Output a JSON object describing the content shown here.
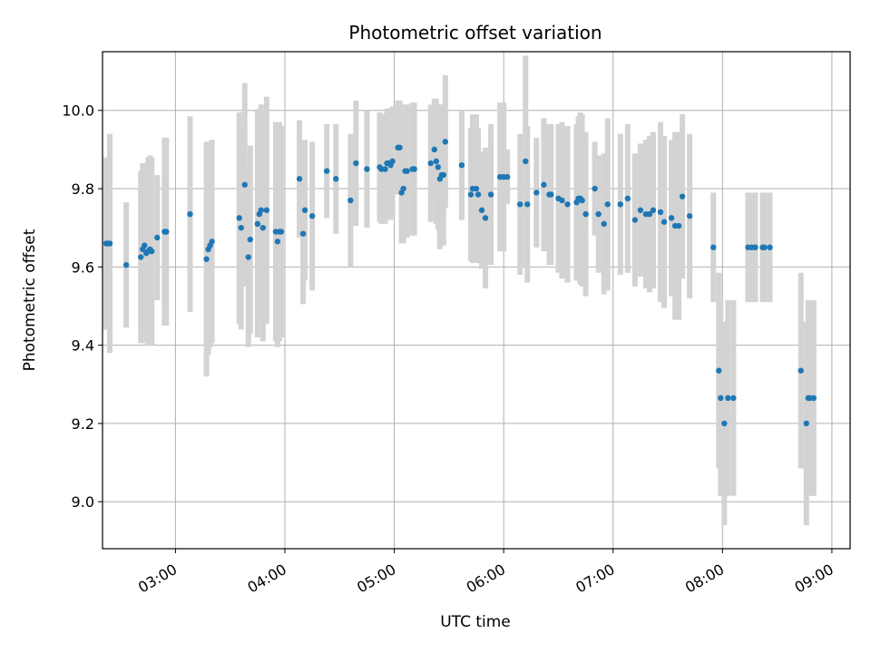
{
  "chart_data": {
    "type": "scatter",
    "title": "Photometric offset variation",
    "xlabel": "UTC time",
    "ylabel": "Photometric offset",
    "xlim": [
      "02:20",
      "09:10"
    ],
    "ylim": [
      8.88,
      10.15
    ],
    "x_ticks": [
      "03:00",
      "04:00",
      "05:00",
      "06:00",
      "07:00",
      "08:00",
      "09:00"
    ],
    "y_ticks": [
      "9.0",
      "9.2",
      "9.4",
      "9.6",
      "9.8",
      "10.0"
    ],
    "grid": true,
    "colors": {
      "points": "#1f77b4",
      "errorbars": "#d3d3d3",
      "grid": "#b0b0b0"
    },
    "series": [
      {
        "x": [
          "02:22",
          "02:23",
          "02:24",
          "02:33",
          "02:41",
          "02:42",
          "02:43",
          "02:44",
          "02:45",
          "02:46",
          "02:47",
          "02:50",
          "02:54",
          "02:55",
          "03:08",
          "03:17",
          "03:18",
          "03:19",
          "03:20",
          "03:35",
          "03:36",
          "03:38",
          "03:40",
          "03:41",
          "03:45",
          "03:46",
          "03:47",
          "03:48",
          "03:50",
          "03:55",
          "03:56",
          "03:57",
          "03:58",
          "04:08",
          "04:10",
          "04:11",
          "04:15",
          "04:23",
          "04:28",
          "04:36",
          "04:39",
          "04:45",
          "04:52",
          "04:53",
          "04:55",
          "04:56",
          "04:57",
          "04:58",
          "04:59",
          "05:02",
          "05:03",
          "05:04",
          "05:05",
          "05:06",
          "05:07",
          "05:10",
          "05:11",
          "05:20",
          "05:22",
          "05:23",
          "05:24",
          "05:25",
          "05:26",
          "05:27",
          "05:28",
          "05:37",
          "05:42",
          "05:43",
          "05:45",
          "05:46",
          "05:48",
          "05:50",
          "05:53",
          "05:58",
          "06:00",
          "06:02",
          "06:09",
          "06:12",
          "06:13",
          "06:18",
          "06:22",
          "06:25",
          "06:26",
          "06:30",
          "06:32",
          "06:35",
          "06:40",
          "06:41",
          "06:42",
          "06:43",
          "06:45",
          "06:50",
          "06:52",
          "06:55",
          "06:57",
          "07:04",
          "07:08",
          "07:12",
          "07:15",
          "07:18",
          "07:20",
          "07:22",
          "07:26",
          "07:28",
          "07:32",
          "07:34",
          "07:36",
          "07:38",
          "07:42",
          "07:55",
          "07:58",
          "07:59",
          "08:01",
          "08:03",
          "08:06",
          "08:14",
          "08:16",
          "08:18",
          "08:22",
          "08:23",
          "08:26",
          "08:43",
          "08:46",
          "08:47",
          "08:48",
          "08:50"
        ],
        "y": [
          9.66,
          9.66,
          9.66,
          9.605,
          9.625,
          9.645,
          9.655,
          9.635,
          9.64,
          9.645,
          9.64,
          9.675,
          9.69,
          9.69,
          9.735,
          9.62,
          9.645,
          9.655,
          9.665,
          9.725,
          9.7,
          9.81,
          9.625,
          9.67,
          9.71,
          9.735,
          9.745,
          9.7,
          9.745,
          9.69,
          9.665,
          9.69,
          9.69,
          9.825,
          9.685,
          9.745,
          9.73,
          9.845,
          9.825,
          9.77,
          9.865,
          9.85,
          9.855,
          9.85,
          9.85,
          9.865,
          9.865,
          9.86,
          9.87,
          9.905,
          9.905,
          9.79,
          9.8,
          9.845,
          9.845,
          9.85,
          9.85,
          9.865,
          9.9,
          9.87,
          9.855,
          9.825,
          9.835,
          9.835,
          9.92,
          9.86,
          9.785,
          9.8,
          9.8,
          9.785,
          9.745,
          9.725,
          9.785,
          9.83,
          9.83,
          9.83,
          9.76,
          9.87,
          9.76,
          9.79,
          9.81,
          9.785,
          9.785,
          9.775,
          9.77,
          9.76,
          9.765,
          9.775,
          9.775,
          9.77,
          9.735,
          9.8,
          9.735,
          9.71,
          9.76,
          9.76,
          9.775,
          9.72,
          9.745,
          9.735,
          9.735,
          9.745,
          9.74,
          9.715,
          9.725,
          9.705,
          9.705,
          9.78,
          9.73,
          9.65,
          9.335,
          9.265,
          9.2,
          9.265,
          9.265,
          9.65,
          9.65,
          9.65,
          9.65,
          9.65,
          9.65,
          9.335,
          9.2,
          9.265,
          9.265,
          9.265
        ],
        "yerr": [
          0.22,
          0.22,
          0.28,
          0.16,
          0.22,
          0.22,
          0.21,
          0.23,
          0.24,
          0.24,
          0.24,
          0.16,
          0.24,
          0.24,
          0.25,
          0.3,
          0.27,
          0.26,
          0.26,
          0.27,
          0.26,
          0.26,
          0.23,
          0.24,
          0.29,
          0.27,
          0.27,
          0.29,
          0.29,
          0.28,
          0.27,
          0.28,
          0.27,
          0.15,
          0.18,
          0.18,
          0.19,
          0.12,
          0.14,
          0.17,
          0.16,
          0.15,
          0.14,
          0.14,
          0.14,
          0.14,
          0.14,
          0.14,
          0.14,
          0.12,
          0.12,
          0.13,
          0.14,
          0.17,
          0.17,
          0.17,
          0.17,
          0.15,
          0.13,
          0.16,
          0.16,
          0.18,
          0.18,
          0.18,
          0.17,
          0.14,
          0.17,
          0.19,
          0.19,
          0.17,
          0.15,
          0.18,
          0.18,
          0.19,
          0.19,
          0.07,
          0.18,
          0.27,
          0.2,
          0.14,
          0.17,
          0.18,
          0.18,
          0.19,
          0.2,
          0.2,
          0.2,
          0.21,
          0.22,
          0.22,
          0.21,
          0.12,
          0.15,
          0.18,
          0.22,
          0.18,
          0.19,
          0.17,
          0.17,
          0.19,
          0.2,
          0.2,
          0.23,
          0.22,
          0.2,
          0.24,
          0.24,
          0.21,
          0.21,
          0.14,
          0.25,
          0.25,
          0.26,
          0.25,
          0.25,
          0.14,
          0.14,
          0.14,
          0.14,
          0.14,
          0.14,
          0.25,
          0.26,
          0.25,
          0.25,
          0.25
        ]
      }
    ]
  }
}
